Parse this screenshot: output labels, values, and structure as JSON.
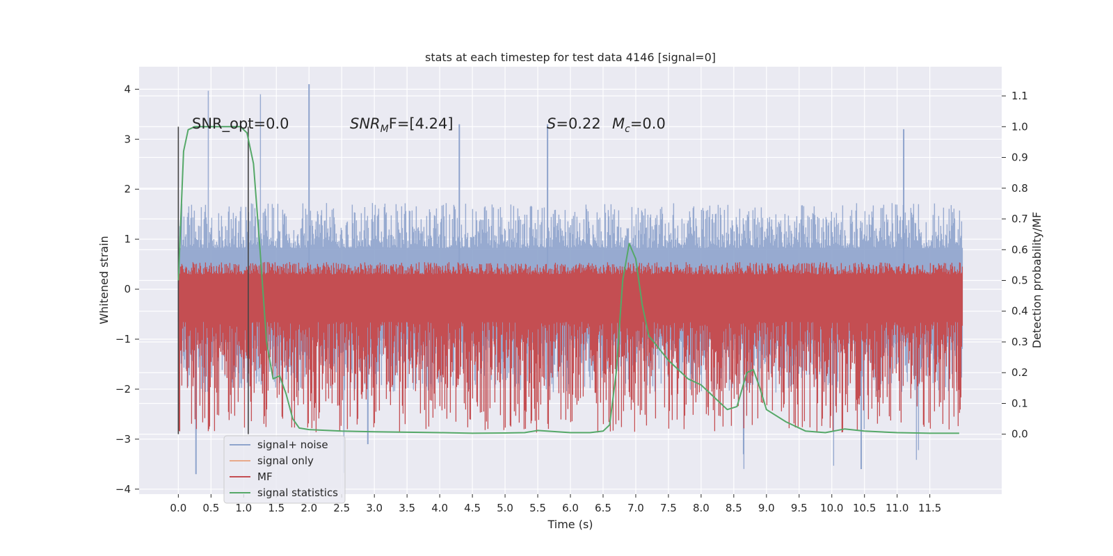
{
  "chart_data": {
    "type": "line",
    "title": "stats at each timestep for test data 4146 [signal=0]",
    "xlabel": "Time (s)",
    "ylabel": "Whitened strain",
    "ylabel_right": "Detection probability/MF",
    "xlim": [
      -0.6,
      12.6
    ],
    "ylim": [
      -4.1,
      4.45
    ],
    "ylim_right": [
      -0.195,
      1.195
    ],
    "x_ticks": [
      "0.0",
      "0.5",
      "1.0",
      "1.5",
      "2.0",
      "2.5",
      "3.0",
      "3.5",
      "4.0",
      "4.5",
      "5.0",
      "5.5",
      "6.0",
      "6.5",
      "7.0",
      "7.5",
      "8.0",
      "8.5",
      "9.0",
      "9.5",
      "10.0",
      "10.5",
      "11.0",
      "11.5"
    ],
    "y_ticks_left": [
      "4",
      "3",
      "2",
      "1",
      "0",
      "−1",
      "−2",
      "−3",
      "−4"
    ],
    "y_ticks_right": [
      "1.1",
      "1.0",
      "0.9",
      "0.8",
      "0.7",
      "0.6",
      "0.5",
      "0.4",
      "0.3",
      "0.2",
      "0.1",
      "0.0"
    ],
    "annotations": {
      "snr_opt": "SNR_opt=0.0",
      "snr_mf_main": "SNR",
      "snr_mf_sub": "M",
      "snr_mf_rest": "F=[4.24]",
      "s_label": "S",
      "s_value": "=0.22",
      "mc_label": "M",
      "mc_sub": "c",
      "mc_value": "=0.0"
    },
    "vlines_x": [
      0.0,
      1.07
    ],
    "noise_envelope": {
      "x_range": [
        0.0,
        12.0
      ],
      "typical_upper": 1.5,
      "typical_lower": -1.8,
      "max": 4.1,
      "min": -3.7
    },
    "mf_envelope": {
      "typical_upper": 0.55,
      "typical_lower": 0.05
    },
    "series": [
      {
        "name": "signal+ noise",
        "color": "#8ea3cc"
      },
      {
        "name": "signal only",
        "color": "#e8a98a"
      },
      {
        "name": "MF",
        "color": "#c44e52"
      },
      {
        "name": "signal statistics",
        "color": "#55a868",
        "x": [
          0.0,
          0.08,
          0.15,
          0.25,
          0.4,
          0.6,
          0.8,
          0.95,
          1.05,
          1.15,
          1.25,
          1.35,
          1.45,
          1.55,
          1.65,
          1.75,
          1.85,
          2.0,
          2.5,
          3.0,
          4.0,
          4.5,
          5.0,
          5.3,
          5.5,
          5.8,
          6.0,
          6.3,
          6.5,
          6.6,
          6.7,
          6.8,
          6.9,
          7.0,
          7.1,
          7.2,
          7.5,
          7.8,
          8.0,
          8.2,
          8.4,
          8.55,
          8.7,
          8.8,
          8.9,
          9.0,
          9.3,
          9.6,
          9.9,
          10.2,
          10.5,
          11.0,
          11.5,
          11.95
        ],
        "y": [
          0.5,
          0.92,
          0.99,
          1.0,
          1.0,
          1.0,
          1.0,
          1.0,
          0.98,
          0.88,
          0.6,
          0.3,
          0.18,
          0.19,
          0.13,
          0.05,
          0.02,
          0.015,
          0.01,
          0.008,
          0.005,
          0.003,
          0.004,
          0.005,
          0.012,
          0.008,
          0.005,
          0.005,
          0.01,
          0.03,
          0.2,
          0.5,
          0.62,
          0.57,
          0.42,
          0.32,
          0.24,
          0.18,
          0.16,
          0.12,
          0.08,
          0.09,
          0.2,
          0.21,
          0.15,
          0.08,
          0.04,
          0.01,
          0.005,
          0.017,
          0.01,
          0.005,
          0.003,
          0.003
        ]
      }
    ],
    "legend_position": "lower-left",
    "grid": true
  }
}
